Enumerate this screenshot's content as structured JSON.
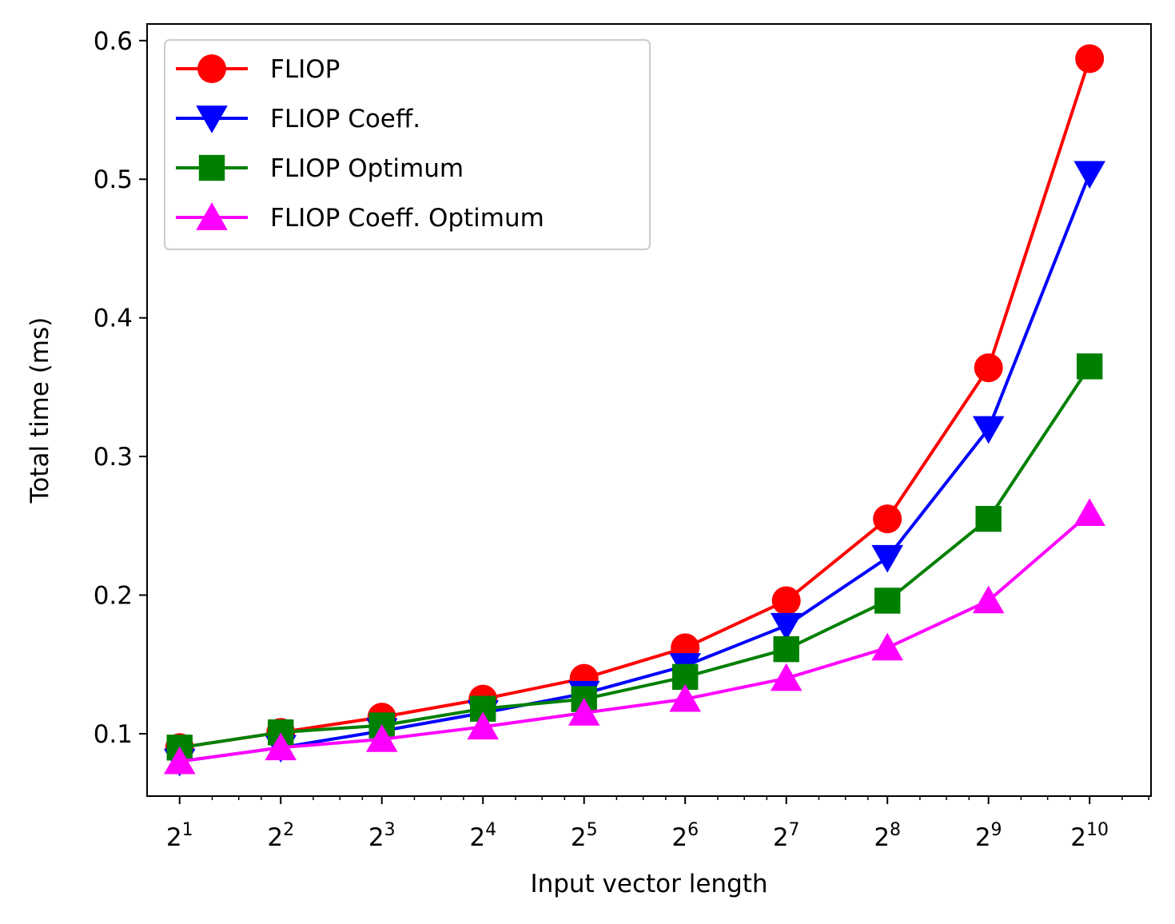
{
  "chart_data": {
    "type": "line",
    "xlabel": "Input vector length",
    "ylabel": "Total time (ms)",
    "x_scale": "log2",
    "x_ticks": [
      {
        "base": "2",
        "exp": "1"
      },
      {
        "base": "2",
        "exp": "2"
      },
      {
        "base": "2",
        "exp": "3"
      },
      {
        "base": "2",
        "exp": "4"
      },
      {
        "base": "2",
        "exp": "5"
      },
      {
        "base": "2",
        "exp": "6"
      },
      {
        "base": "2",
        "exp": "7"
      },
      {
        "base": "2",
        "exp": "8"
      },
      {
        "base": "2",
        "exp": "9"
      },
      {
        "base": "2",
        "exp": "10"
      }
    ],
    "x": [
      2,
      4,
      8,
      16,
      32,
      64,
      128,
      256,
      512,
      1024
    ],
    "xlim": [
      1.6,
      1560
    ],
    "y_ticks": [
      "0.1",
      "0.2",
      "0.3",
      "0.4",
      "0.5",
      "0.6"
    ],
    "ylim": [
      0.055,
      0.612
    ],
    "grid": false,
    "legend_position": "upper-left",
    "series": [
      {
        "name": "FLIOP",
        "color": "#ff0000",
        "marker": "circle",
        "values": [
          0.09,
          0.101,
          0.112,
          0.125,
          0.14,
          0.162,
          0.196,
          0.255,
          0.364,
          0.587
        ]
      },
      {
        "name": "FLIOP Coeff.",
        "color": "#0000ff",
        "marker": "triangle-down",
        "values": [
          0.08,
          0.09,
          0.102,
          0.115,
          0.129,
          0.149,
          0.178,
          0.227,
          0.32,
          0.504
        ]
      },
      {
        "name": "FLIOP Optimum",
        "color": "#008000",
        "marker": "square",
        "values": [
          0.09,
          0.101,
          0.106,
          0.118,
          0.125,
          0.141,
          0.161,
          0.196,
          0.255,
          0.365
        ]
      },
      {
        "name": "FLIOP Coeff. Optimum",
        "color": "#ff00ff",
        "marker": "triangle-up",
        "values": [
          0.08,
          0.09,
          0.096,
          0.105,
          0.115,
          0.125,
          0.14,
          0.162,
          0.196,
          0.259
        ]
      }
    ]
  }
}
